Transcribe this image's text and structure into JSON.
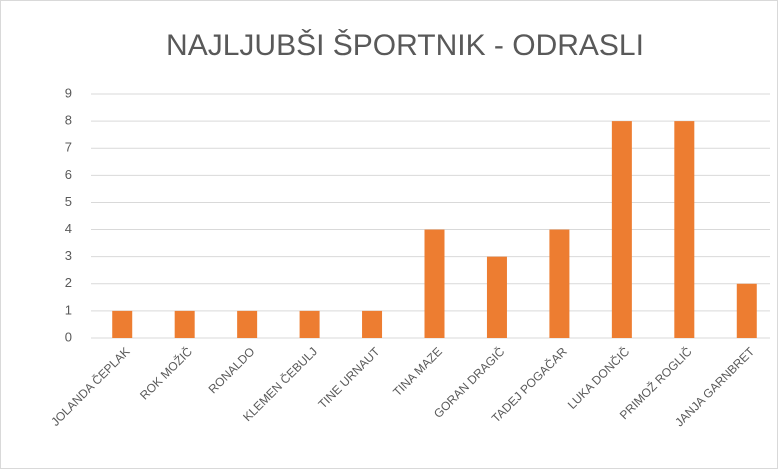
{
  "chart_data": {
    "type": "bar",
    "title": "NAJLJUBŠI ŠPORTNIK - ODRASLI",
    "categories": [
      "JOLANDA ČEPLAK",
      "ROK MOŽIČ",
      "RONALDO",
      "KLEMEN ČEBULJ",
      "TINE URNAUT",
      "TINA MAZE",
      "GORAN DRAGIČ",
      "TADEJ POGAČAR",
      "LUKA DONČIČ",
      "PRIMOŽ ROGLIČ",
      "JANJA GARNBRET"
    ],
    "values": [
      1,
      1,
      1,
      1,
      1,
      4,
      3,
      4,
      8,
      8,
      2
    ],
    "color": "#ed7d31",
    "ylim": [
      0,
      9
    ],
    "yticks": [
      0,
      1,
      2,
      3,
      4,
      5,
      6,
      7,
      8,
      9
    ],
    "grid": true
  }
}
